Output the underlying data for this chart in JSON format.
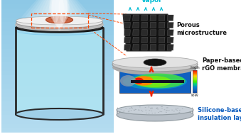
{
  "bg_color": "#ffffff",
  "vapor_label": "Vapor",
  "vapor_color": "#00bcd4",
  "label1": "Porous\nmicrostructure",
  "label2": "Paper-based\nrGO membrane",
  "label3": "Silicone-based porous\ninsulation layer",
  "label3_color": "#0055bb",
  "label_color": "#111111",
  "dashed_color": "#ff4500",
  "arrow_color": "#ee2200",
  "colorbar_high": "high",
  "colorbar_low": "low",
  "figsize": [
    3.39,
    1.89
  ],
  "dpi": 100
}
